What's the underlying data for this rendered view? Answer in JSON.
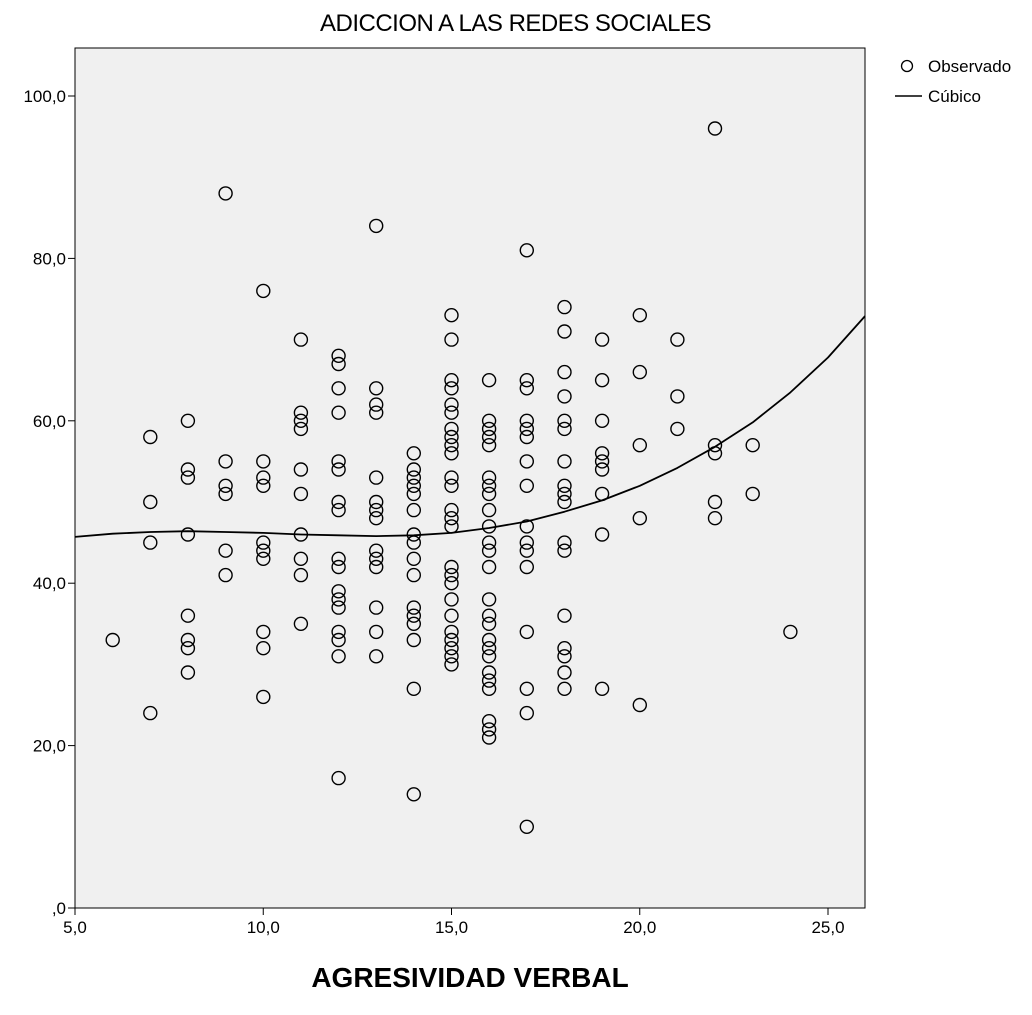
{
  "chart_data": {
    "type": "scatter",
    "title": "ADICCION A LAS REDES SOCIALES",
    "xlabel": "AGRESIVIDAD VERBAL",
    "ylabel": "",
    "xlim": [
      5,
      26
    ],
    "ylim": [
      0,
      105
    ],
    "x_ticks": [
      {
        "value": 5,
        "label": "5,0"
      },
      {
        "value": 10,
        "label": "10,0"
      },
      {
        "value": 15,
        "label": "15,0"
      },
      {
        "value": 20,
        "label": "20,0"
      },
      {
        "value": 25,
        "label": "25,0"
      }
    ],
    "y_ticks": [
      {
        "value": 0,
        "label": ",0"
      },
      {
        "value": 20,
        "label": "20,0"
      },
      {
        "value": 40,
        "label": "40,0"
      },
      {
        "value": 60,
        "label": "60,0"
      },
      {
        "value": 80,
        "label": "80,0"
      },
      {
        "value": 100,
        "label": "100,0"
      }
    ],
    "grid": false,
    "legend": {
      "placement": "top-right",
      "entries": [
        {
          "label": "Observado",
          "marker": "circle"
        },
        {
          "label": "Cúbico",
          "marker": "line"
        }
      ]
    },
    "series": [
      {
        "name": "Observado",
        "kind": "points",
        "points": [
          [
            6,
            33
          ],
          [
            7,
            58
          ],
          [
            7,
            50
          ],
          [
            7,
            45
          ],
          [
            7,
            24
          ],
          [
            8,
            60
          ],
          [
            8,
            54
          ],
          [
            8,
            53
          ],
          [
            8,
            46
          ],
          [
            8,
            36
          ],
          [
            8,
            33
          ],
          [
            8,
            32
          ],
          [
            8,
            29
          ],
          [
            9,
            88
          ],
          [
            9,
            55
          ],
          [
            9,
            52
          ],
          [
            9,
            51
          ],
          [
            9,
            44
          ],
          [
            9,
            41
          ],
          [
            10,
            76
          ],
          [
            10,
            55
          ],
          [
            10,
            53
          ],
          [
            10,
            52
          ],
          [
            10,
            45
          ],
          [
            10,
            44
          ],
          [
            10,
            43
          ],
          [
            10,
            34
          ],
          [
            10,
            32
          ],
          [
            10,
            26
          ],
          [
            11,
            70
          ],
          [
            11,
            61
          ],
          [
            11,
            60
          ],
          [
            11,
            59
          ],
          [
            11,
            54
          ],
          [
            11,
            51
          ],
          [
            11,
            46
          ],
          [
            11,
            43
          ],
          [
            11,
            41
          ],
          [
            11,
            35
          ],
          [
            12,
            68
          ],
          [
            12,
            67
          ],
          [
            12,
            64
          ],
          [
            12,
            61
          ],
          [
            12,
            55
          ],
          [
            12,
            54
          ],
          [
            12,
            50
          ],
          [
            12,
            49
          ],
          [
            12,
            43
          ],
          [
            12,
            42
          ],
          [
            12,
            39
          ],
          [
            12,
            38
          ],
          [
            12,
            37
          ],
          [
            12,
            34
          ],
          [
            12,
            33
          ],
          [
            12,
            31
          ],
          [
            12,
            16
          ],
          [
            13,
            84
          ],
          [
            13,
            64
          ],
          [
            13,
            62
          ],
          [
            13,
            61
          ],
          [
            13,
            53
          ],
          [
            13,
            50
          ],
          [
            13,
            49
          ],
          [
            13,
            48
          ],
          [
            13,
            44
          ],
          [
            13,
            43
          ],
          [
            13,
            42
          ],
          [
            13,
            37
          ],
          [
            13,
            34
          ],
          [
            13,
            31
          ],
          [
            14,
            56
          ],
          [
            14,
            54
          ],
          [
            14,
            53
          ],
          [
            14,
            52
          ],
          [
            14,
            51
          ],
          [
            14,
            49
          ],
          [
            14,
            46
          ],
          [
            14,
            45
          ],
          [
            14,
            43
          ],
          [
            14,
            41
          ],
          [
            14,
            37
          ],
          [
            14,
            36
          ],
          [
            14,
            35
          ],
          [
            14,
            33
          ],
          [
            14,
            27
          ],
          [
            14,
            14
          ],
          [
            15,
            73
          ],
          [
            15,
            70
          ],
          [
            15,
            65
          ],
          [
            15,
            64
          ],
          [
            15,
            62
          ],
          [
            15,
            61
          ],
          [
            15,
            59
          ],
          [
            15,
            58
          ],
          [
            15,
            57
          ],
          [
            15,
            56
          ],
          [
            15,
            53
          ],
          [
            15,
            52
          ],
          [
            15,
            49
          ],
          [
            15,
            48
          ],
          [
            15,
            47
          ],
          [
            15,
            42
          ],
          [
            15,
            41
          ],
          [
            15,
            40
          ],
          [
            15,
            38
          ],
          [
            15,
            36
          ],
          [
            15,
            34
          ],
          [
            15,
            33
          ],
          [
            15,
            32
          ],
          [
            15,
            31
          ],
          [
            15,
            30
          ],
          [
            16,
            65
          ],
          [
            16,
            60
          ],
          [
            16,
            59
          ],
          [
            16,
            58
          ],
          [
            16,
            57
          ],
          [
            16,
            53
          ],
          [
            16,
            52
          ],
          [
            16,
            51
          ],
          [
            16,
            49
          ],
          [
            16,
            47
          ],
          [
            16,
            45
          ],
          [
            16,
            44
          ],
          [
            16,
            42
          ],
          [
            16,
            38
          ],
          [
            16,
            36
          ],
          [
            16,
            35
          ],
          [
            16,
            33
          ],
          [
            16,
            32
          ],
          [
            16,
            31
          ],
          [
            16,
            29
          ],
          [
            16,
            28
          ],
          [
            16,
            27
          ],
          [
            16,
            23
          ],
          [
            16,
            22
          ],
          [
            16,
            21
          ],
          [
            17,
            81
          ],
          [
            17,
            65
          ],
          [
            17,
            64
          ],
          [
            17,
            60
          ],
          [
            17,
            59
          ],
          [
            17,
            58
          ],
          [
            17,
            55
          ],
          [
            17,
            52
          ],
          [
            17,
            47
          ],
          [
            17,
            45
          ],
          [
            17,
            44
          ],
          [
            17,
            42
          ],
          [
            17,
            34
          ],
          [
            17,
            27
          ],
          [
            17,
            24
          ],
          [
            17,
            10
          ],
          [
            18,
            74
          ],
          [
            18,
            71
          ],
          [
            18,
            66
          ],
          [
            18,
            63
          ],
          [
            18,
            60
          ],
          [
            18,
            59
          ],
          [
            18,
            55
          ],
          [
            18,
            52
          ],
          [
            18,
            51
          ],
          [
            18,
            50
          ],
          [
            18,
            45
          ],
          [
            18,
            44
          ],
          [
            18,
            36
          ],
          [
            18,
            32
          ],
          [
            18,
            31
          ],
          [
            18,
            29
          ],
          [
            18,
            27
          ],
          [
            19,
            70
          ],
          [
            19,
            65
          ],
          [
            19,
            60
          ],
          [
            19,
            56
          ],
          [
            19,
            55
          ],
          [
            19,
            54
          ],
          [
            19,
            51
          ],
          [
            19,
            46
          ],
          [
            19,
            27
          ],
          [
            20,
            73
          ],
          [
            20,
            66
          ],
          [
            20,
            57
          ],
          [
            20,
            48
          ],
          [
            20,
            25
          ],
          [
            21,
            70
          ],
          [
            21,
            63
          ],
          [
            21,
            59
          ],
          [
            22,
            96
          ],
          [
            22,
            57
          ],
          [
            22,
            56
          ],
          [
            22,
            50
          ],
          [
            22,
            48
          ],
          [
            23,
            57
          ],
          [
            23,
            51
          ],
          [
            24,
            34
          ]
        ]
      },
      {
        "name": "Cúbico",
        "kind": "curve",
        "points": [
          [
            5,
            45.7
          ],
          [
            6,
            46.1
          ],
          [
            7,
            46.3
          ],
          [
            8,
            46.4
          ],
          [
            9,
            46.3
          ],
          [
            10,
            46.2
          ],
          [
            11,
            46.0
          ],
          [
            12,
            45.9
          ],
          [
            13,
            45.8
          ],
          [
            14,
            45.9
          ],
          [
            15,
            46.2
          ],
          [
            16,
            46.8
          ],
          [
            17,
            47.6
          ],
          [
            18,
            48.8
          ],
          [
            19,
            50.2
          ],
          [
            20,
            52.0
          ],
          [
            21,
            54.2
          ],
          [
            22,
            56.8
          ],
          [
            23,
            59.8
          ],
          [
            24,
            63.5
          ],
          [
            25,
            67.8
          ],
          [
            26,
            72.9
          ]
        ]
      }
    ]
  }
}
